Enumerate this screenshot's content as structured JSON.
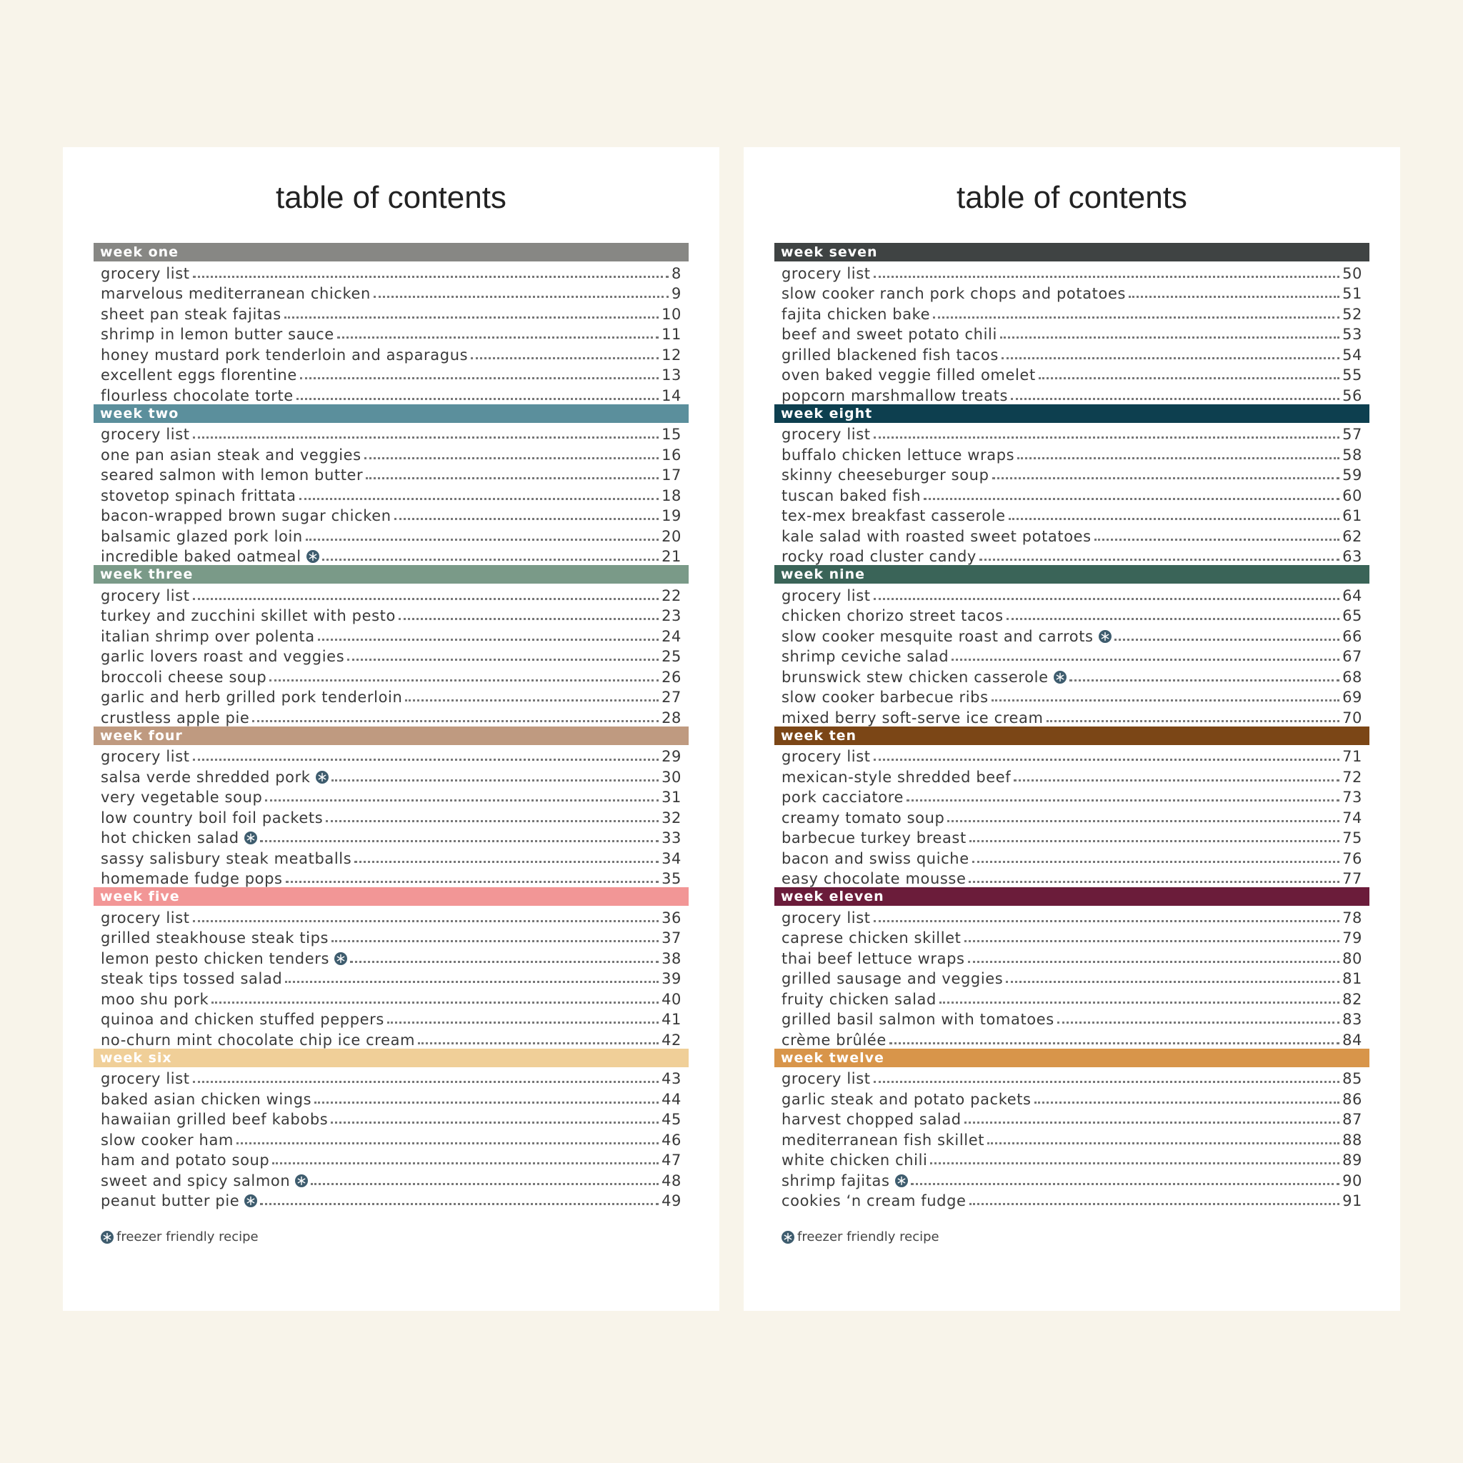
{
  "pages": [
    {
      "title": "table of contents",
      "legend": "freezer friendly recipe",
      "weeks": [
        {
          "name": "week one",
          "color": "#878784",
          "entries": [
            {
              "title": "grocery list",
              "page": "8",
              "freezer": false
            },
            {
              "title": "marvelous mediterranean chicken",
              "page": "9",
              "freezer": false
            },
            {
              "title": "sheet pan steak fajitas",
              "page": "10",
              "freezer": false
            },
            {
              "title": "shrimp in lemon butter sauce",
              "page": "11",
              "freezer": false
            },
            {
              "title": "honey mustard pork tenderloin and asparagus",
              "page": "12",
              "freezer": false
            },
            {
              "title": "excellent eggs florentine",
              "page": "13",
              "freezer": false
            },
            {
              "title": "flourless chocolate torte",
              "page": "14",
              "freezer": false
            }
          ]
        },
        {
          "name": "week two",
          "color": "#5b8f9c",
          "entries": [
            {
              "title": "grocery list",
              "page": "15",
              "freezer": false
            },
            {
              "title": "one pan asian steak and veggies",
              "page": "16",
              "freezer": false
            },
            {
              "title": "seared salmon with lemon butter",
              "page": "17",
              "freezer": false
            },
            {
              "title": "stovetop spinach frittata",
              "page": "18",
              "freezer": false
            },
            {
              "title": "bacon-wrapped brown sugar chicken",
              "page": "19",
              "freezer": false
            },
            {
              "title": "balsamic glazed pork loin",
              "page": "20",
              "freezer": false
            },
            {
              "title": "incredible baked oatmeal",
              "page": "21",
              "freezer": true
            }
          ]
        },
        {
          "name": "week three",
          "color": "#7a9a88",
          "entries": [
            {
              "title": "grocery list",
              "page": "22",
              "freezer": false
            },
            {
              "title": "turkey and zucchini skillet with pesto",
              "page": "23",
              "freezer": false
            },
            {
              "title": "italian shrimp over polenta",
              "page": "24",
              "freezer": false
            },
            {
              "title": "garlic lovers roast and veggies",
              "page": "25",
              "freezer": false
            },
            {
              "title": "broccoli cheese soup",
              "page": "26",
              "freezer": false
            },
            {
              "title": "garlic and herb grilled pork tenderloin",
              "page": "27",
              "freezer": false
            },
            {
              "title": "crustless apple pie",
              "page": "28",
              "freezer": false
            }
          ]
        },
        {
          "name": "week four",
          "color": "#bf9a80",
          "entries": [
            {
              "title": "grocery list",
              "page": "29",
              "freezer": false
            },
            {
              "title": "salsa verde shredded pork",
              "page": "30",
              "freezer": true
            },
            {
              "title": "very vegetable soup",
              "page": "31",
              "freezer": false
            },
            {
              "title": "low country boil foil packets",
              "page": "32",
              "freezer": false
            },
            {
              "title": "hot chicken salad",
              "page": "33",
              "freezer": true
            },
            {
              "title": "sassy salisbury steak meatballs",
              "page": "34",
              "freezer": false
            },
            {
              "title": "homemade fudge pops",
              "page": "35",
              "freezer": false
            }
          ]
        },
        {
          "name": "week five",
          "color": "#f29696",
          "entries": [
            {
              "title": "grocery list",
              "page": "36",
              "freezer": false
            },
            {
              "title": "grilled steakhouse steak tips",
              "page": "37",
              "freezer": false
            },
            {
              "title": "lemon pesto chicken tenders",
              "page": "38",
              "freezer": true
            },
            {
              "title": "steak tips tossed salad",
              "page": "39",
              "freezer": false
            },
            {
              "title": "moo shu pork",
              "page": "40",
              "freezer": false
            },
            {
              "title": "quinoa and chicken stuffed peppers",
              "page": "41",
              "freezer": false
            },
            {
              "title": "no-churn mint chocolate chip ice cream",
              "page": "42",
              "freezer": false
            }
          ]
        },
        {
          "name": "week six",
          "color": "#f0cf98",
          "entries": [
            {
              "title": "grocery list",
              "page": "43",
              "freezer": false
            },
            {
              "title": "baked asian chicken wings",
              "page": "44",
              "freezer": false
            },
            {
              "title": "hawaiian grilled beef kabobs",
              "page": "45",
              "freezer": false
            },
            {
              "title": "slow cooker ham",
              "page": "46",
              "freezer": false
            },
            {
              "title": "ham and potato soup",
              "page": "47",
              "freezer": false
            },
            {
              "title": "sweet and spicy salmon",
              "page": "48",
              "freezer": true
            },
            {
              "title": "peanut butter pie",
              "page": "49",
              "freezer": true
            }
          ]
        }
      ]
    },
    {
      "title": "table of contents",
      "legend": "freezer friendly recipe",
      "weeks": [
        {
          "name": "week seven",
          "color": "#3f4343",
          "entries": [
            {
              "title": "grocery list",
              "page": "50",
              "freezer": false
            },
            {
              "title": "slow cooker ranch pork chops and potatoes",
              "page": "51",
              "freezer": false
            },
            {
              "title": "fajita chicken bake",
              "page": "52",
              "freezer": false
            },
            {
              "title": "beef and sweet potato chili",
              "page": "53",
              "freezer": false
            },
            {
              "title": "grilled blackened fish tacos",
              "page": "54",
              "freezer": false
            },
            {
              "title": "oven baked veggie filled omelet",
              "page": "55",
              "freezer": false
            },
            {
              "title": "popcorn marshmallow treats",
              "page": "56",
              "freezer": false
            }
          ]
        },
        {
          "name": "week eight",
          "color": "#0d3f4f",
          "entries": [
            {
              "title": "grocery list",
              "page": "57",
              "freezer": false
            },
            {
              "title": "buffalo chicken lettuce wraps",
              "page": "58",
              "freezer": false
            },
            {
              "title": "skinny cheeseburger soup",
              "page": "59",
              "freezer": false
            },
            {
              "title": "tuscan baked fish",
              "page": "60",
              "freezer": false
            },
            {
              "title": "tex-mex breakfast casserole",
              "page": "61",
              "freezer": false
            },
            {
              "title": "kale salad with roasted sweet potatoes",
              "page": "62",
              "freezer": false
            },
            {
              "title": "rocky road cluster candy",
              "page": "63",
              "freezer": false
            }
          ]
        },
        {
          "name": "week nine",
          "color": "#3a6458",
          "entries": [
            {
              "title": "grocery list",
              "page": "64",
              "freezer": false
            },
            {
              "title": "chicken chorizo street tacos",
              "page": "65",
              "freezer": false
            },
            {
              "title": "slow cooker mesquite roast and carrots",
              "page": "66",
              "freezer": true
            },
            {
              "title": "shrimp ceviche salad",
              "page": "67",
              "freezer": false
            },
            {
              "title": "brunswick stew chicken casserole",
              "page": "68",
              "freezer": true
            },
            {
              "title": "slow cooker barbecue ribs",
              "page": "69",
              "freezer": false
            },
            {
              "title": "mixed berry soft-serve ice cream",
              "page": "70",
              "freezer": false
            }
          ]
        },
        {
          "name": "week ten",
          "color": "#7b4616",
          "entries": [
            {
              "title": "grocery list",
              "page": "71",
              "freezer": false
            },
            {
              "title": "mexican-style shredded beef",
              "page": "72",
              "freezer": false
            },
            {
              "title": "pork cacciatore",
              "page": "73",
              "freezer": false
            },
            {
              "title": "creamy tomato soup",
              "page": "74",
              "freezer": false
            },
            {
              "title": "barbecue turkey breast",
              "page": "75",
              "freezer": false
            },
            {
              "title": "bacon and swiss quiche",
              "page": "76",
              "freezer": false
            },
            {
              "title": "easy chocolate mousse",
              "page": "77",
              "freezer": false
            }
          ]
        },
        {
          "name": "week eleven",
          "color": "#6b1c3a",
          "entries": [
            {
              "title": "grocery list",
              "page": "78",
              "freezer": false
            },
            {
              "title": "caprese chicken skillet",
              "page": "79",
              "freezer": false
            },
            {
              "title": "thai beef lettuce wraps",
              "page": "80",
              "freezer": false
            },
            {
              "title": "grilled sausage and veggies",
              "page": "81",
              "freezer": false
            },
            {
              "title": "fruity chicken salad",
              "page": "82",
              "freezer": false
            },
            {
              "title": "grilled basil salmon with tomatoes",
              "page": "83",
              "freezer": false
            },
            {
              "title": "crème brûlée",
              "page": "84",
              "freezer": false
            }
          ]
        },
        {
          "name": "week twelve",
          "color": "#d8954a",
          "entries": [
            {
              "title": "grocery list",
              "page": "85",
              "freezer": false
            },
            {
              "title": "garlic steak and potato packets",
              "page": "86",
              "freezer": false
            },
            {
              "title": "harvest chopped salad",
              "page": "87",
              "freezer": false
            },
            {
              "title": "mediterranean fish skillet",
              "page": "88",
              "freezer": false
            },
            {
              "title": "white chicken chili",
              "page": "89",
              "freezer": false
            },
            {
              "title": "shrimp fajitas",
              "page": "90",
              "freezer": true
            },
            {
              "title": "cookies ‘n cream fudge",
              "page": "91",
              "freezer": false
            }
          ]
        }
      ]
    }
  ]
}
